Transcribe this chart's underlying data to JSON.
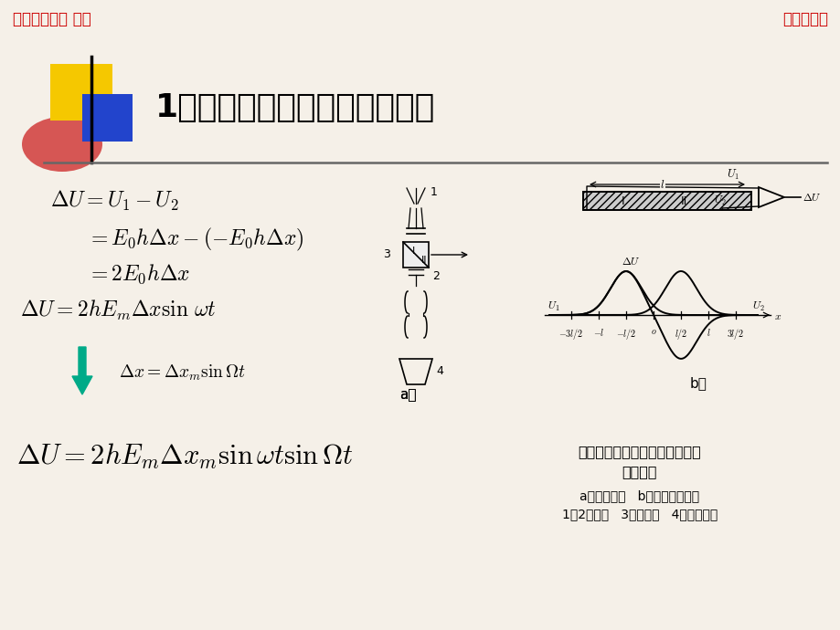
{
  "bg_color": "#f5f0e8",
  "header_left": "南京理工大学 何勇",
  "header_right": "非相干检测",
  "header_color": "#cc0000",
  "title": "1．双通道差分调制式像分析器",
  "title_fontsize": 26,
  "arrow_color": "#00aa88",
  "label_a": "a）",
  "label_b": "b）",
  "caption1": "双通道差分调制式狭缝象分析器",
  "caption2": "工作原理",
  "caption3": "a）光路原理   b）差分定位特性",
  "caption4": "1、2一狭缝   3一分束镜   4一被测线纹"
}
